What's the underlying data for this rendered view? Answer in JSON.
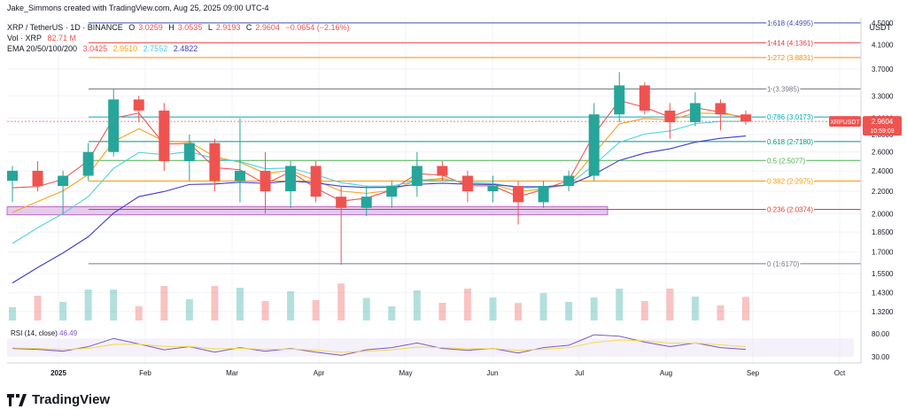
{
  "header": {
    "byline": "Jake_Simmons created with TradingView.com, Aug 25, 2025 09:00 UTC-4",
    "symbol_line": "XRP / TetherUS · 1D · BINANCE",
    "ohlc": {
      "o_label": "O",
      "o": "3.0259",
      "h_label": "H",
      "h": "3.0535",
      "l_label": "L",
      "l": "2.9193",
      "c_label": "C",
      "c": "2.9604",
      "chg": "−0.0654 (−2.16%)"
    },
    "vol_label": "Vol · XRP",
    "vol_value": "82.71 M",
    "ema_label": "EMA 20/50/100/200",
    "ema_values": [
      "3.0425",
      "2.9510",
      "2.7552",
      "2.4822"
    ],
    "currency": "USDT"
  },
  "colors": {
    "up": "#26a69a",
    "down": "#ef5350",
    "ema20": "#ef5350",
    "ema50": "#f7a21b",
    "ema100": "#4dd0e1",
    "ema200": "#3f3bc9",
    "rsi": "#7e57c2",
    "rsi_ma": "#f5d949",
    "band": "#e1bee7"
  },
  "chart_data": {
    "type": "candlestick",
    "title": "XRP / TetherUS · 1D · BINANCE",
    "ylim": [
      1.28,
      4.6
    ],
    "y_ticks": [
      "4.5000",
      "4.1000",
      "3.7000",
      "3.3000",
      "3.0000",
      "2.8000",
      "2.6000",
      "2.4000",
      "2.2000",
      "2.0000",
      "1.8500",
      "1.7000",
      "1.5500",
      "1.4300",
      "1.3200"
    ],
    "x_ticks": [
      "2025",
      "Feb",
      "Mar",
      "Apr",
      "May",
      "Jun",
      "Jul",
      "Aug",
      "Sep",
      "Oct"
    ],
    "last_price": {
      "label": "XRPUSDT",
      "value": "2.9604",
      "countdown": "10:59:09"
    },
    "fib_levels": [
      {
        "label": "1.618 (4.4995)",
        "value": 4.4995,
        "color": "#3f51b5"
      },
      {
        "label": "1.414 (4.1361)",
        "value": 4.1361,
        "color": "#e53935"
      },
      {
        "label": "1.272 (3.8831)",
        "value": 3.8831,
        "color": "#fb8c00"
      },
      {
        "label": "1 (3.3985)",
        "value": 3.3985,
        "color": "#787b86"
      },
      {
        "label": "0.786 (3.0173)",
        "value": 3.0173,
        "color": "#00acc1"
      },
      {
        "label": "0.618 (2.7180)",
        "value": 2.718,
        "color": "#009688"
      },
      {
        "label": "0.5 (2.5077)",
        "value": 2.5077,
        "color": "#4caf50"
      },
      {
        "label": "0.382 (2.2975)",
        "value": 2.2975,
        "color": "#ff9800"
      },
      {
        "label": "0.236 (2.0374)",
        "value": 2.0374,
        "color": "#e53935"
      },
      {
        "label": "0 (1.6170)",
        "value": 1.617,
        "color": "#787b86"
      }
    ],
    "support_zone": {
      "low": 1.99,
      "high": 2.06
    },
    "candles_weekly_approx": [
      {
        "o": 2.3,
        "h": 2.45,
        "l": 2.1,
        "c": 2.4
      },
      {
        "o": 2.4,
        "h": 2.5,
        "l": 2.2,
        "c": 2.25
      },
      {
        "o": 2.25,
        "h": 2.4,
        "l": 2.0,
        "c": 2.35
      },
      {
        "o": 2.35,
        "h": 2.7,
        "l": 2.3,
        "c": 2.6
      },
      {
        "o": 2.6,
        "h": 3.4,
        "l": 2.55,
        "c": 3.25
      },
      {
        "o": 3.25,
        "h": 3.3,
        "l": 2.95,
        "c": 3.1
      },
      {
        "o": 3.1,
        "h": 3.2,
        "l": 2.4,
        "c": 2.5
      },
      {
        "o": 2.5,
        "h": 2.8,
        "l": 2.3,
        "c": 2.7
      },
      {
        "o": 2.7,
        "h": 2.75,
        "l": 2.2,
        "c": 2.3
      },
      {
        "o": 2.3,
        "h": 3.0,
        "l": 2.1,
        "c": 2.4
      },
      {
        "o": 2.4,
        "h": 2.6,
        "l": 2.0,
        "c": 2.2
      },
      {
        "o": 2.2,
        "h": 2.5,
        "l": 2.05,
        "c": 2.45
      },
      {
        "o": 2.45,
        "h": 2.5,
        "l": 2.1,
        "c": 2.15
      },
      {
        "o": 2.15,
        "h": 2.25,
        "l": 1.61,
        "c": 2.05
      },
      {
        "o": 2.05,
        "h": 2.25,
        "l": 1.98,
        "c": 2.15
      },
      {
        "o": 2.15,
        "h": 2.3,
        "l": 2.05,
        "c": 2.25
      },
      {
        "o": 2.25,
        "h": 2.6,
        "l": 2.15,
        "c": 2.45
      },
      {
        "o": 2.45,
        "h": 2.5,
        "l": 2.3,
        "c": 2.35
      },
      {
        "o": 2.35,
        "h": 2.4,
        "l": 2.1,
        "c": 2.2
      },
      {
        "o": 2.2,
        "h": 2.35,
        "l": 2.1,
        "c": 2.25
      },
      {
        "o": 2.25,
        "h": 2.3,
        "l": 1.91,
        "c": 2.1
      },
      {
        "o": 2.1,
        "h": 2.3,
        "l": 2.05,
        "c": 2.25
      },
      {
        "o": 2.25,
        "h": 2.4,
        "l": 2.2,
        "c": 2.35
      },
      {
        "o": 2.35,
        "h": 3.2,
        "l": 2.3,
        "c": 3.05
      },
      {
        "o": 3.05,
        "h": 3.65,
        "l": 2.95,
        "c": 3.45
      },
      {
        "o": 3.45,
        "h": 3.5,
        "l": 3.05,
        "c": 3.1
      },
      {
        "o": 3.1,
        "h": 3.2,
        "l": 2.75,
        "c": 2.95
      },
      {
        "o": 2.95,
        "h": 3.35,
        "l": 2.9,
        "c": 3.2
      },
      {
        "o": 3.2,
        "h": 3.25,
        "l": 2.85,
        "c": 3.05
      },
      {
        "o": 3.05,
        "h": 3.1,
        "l": 2.92,
        "c": 2.96
      }
    ],
    "rsi": {
      "label": "RSI (14, close)",
      "value": "46.49",
      "upper_tick": "80.00",
      "lower_tick": "30.00",
      "values": [
        48,
        46,
        42,
        52,
        70,
        58,
        45,
        52,
        40,
        50,
        42,
        48,
        40,
        33,
        45,
        50,
        60,
        48,
        44,
        48,
        38,
        50,
        55,
        78,
        75,
        62,
        52,
        60,
        50,
        46
      ]
    }
  }
}
